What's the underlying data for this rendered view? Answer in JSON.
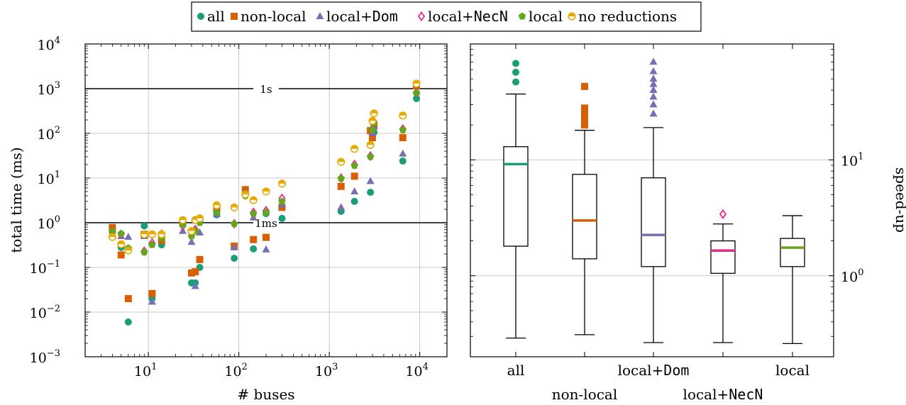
{
  "legend": {
    "entries": [
      {
        "label_pre": "all",
        "label_mono": "",
        "color": "#1b9e77",
        "marker": "circle"
      },
      {
        "label_pre": "non-local",
        "label_mono": "",
        "color": "#d95f02",
        "marker": "square"
      },
      {
        "label_pre": "local+",
        "label_mono": "Dom",
        "color": "#7570b3",
        "marker": "triangle"
      },
      {
        "label_pre": "local+",
        "label_mono": "NecN",
        "color": "#e7298a",
        "marker": "diamond"
      },
      {
        "label_pre": "local",
        "label_mono": "",
        "color": "#66a61e",
        "marker": "pentagon"
      },
      {
        "label_pre": "no reductions",
        "label_mono": "",
        "color": "#e6ab02",
        "marker": "halfcircle"
      }
    ]
  },
  "chart_data": [
    {
      "type": "scatter",
      "xlabel": "# buses",
      "ylabel": "total time (ms)",
      "xscale": "log",
      "yscale": "log",
      "xlim": [
        2,
        20000
      ],
      "ylim": [
        0.001,
        10000
      ],
      "x_ticks": [
        {
          "base": "10",
          "exp": "1"
        },
        {
          "base": "10",
          "exp": "2"
        },
        {
          "base": "10",
          "exp": "3"
        },
        {
          "base": "10",
          "exp": "4"
        }
      ],
      "y_ticks": [
        {
          "base": "10",
          "exp": "−3"
        },
        {
          "base": "10",
          "exp": "−2"
        },
        {
          "base": "10",
          "exp": "−1"
        },
        {
          "base": "10",
          "exp": "0"
        },
        {
          "base": "10",
          "exp": "1"
        },
        {
          "base": "10",
          "exp": "2"
        },
        {
          "base": "10",
          "exp": "3"
        },
        {
          "base": "10",
          "exp": "4"
        }
      ],
      "grid": true,
      "reference_lines": [
        {
          "y": 1000,
          "label": "1s"
        },
        {
          "y": 1,
          "label": "1ms"
        }
      ],
      "series": [
        {
          "name": "all",
          "points": [
            [
              4,
              0.62
            ],
            [
              5,
              0.28
            ],
            [
              6,
              0.006
            ],
            [
              9,
              0.85
            ],
            [
              11,
              0.02
            ],
            [
              14,
              0.32
            ],
            [
              24,
              0.9
            ],
            [
              30,
              0.045
            ],
            [
              33,
              0.045
            ],
            [
              37,
              0.1
            ],
            [
              57,
              1.5
            ],
            [
              89,
              0.16
            ],
            [
              118,
              4.5
            ],
            [
              145,
              0.26
            ],
            [
              200,
              1.6
            ],
            [
              300,
              1.25
            ],
            [
              1350,
              1.8
            ],
            [
              1900,
              3
            ],
            [
              2850,
              4.8
            ],
            [
              3000,
              90
            ],
            [
              3120,
              105
            ],
            [
              6500,
              24
            ],
            [
              9200,
              600
            ]
          ]
        },
        {
          "name": "non-local",
          "points": [
            [
              4,
              0.78
            ],
            [
              5,
              0.19
            ],
            [
              6,
              0.02
            ],
            [
              9,
              0.55
            ],
            [
              11,
              0.026
            ],
            [
              14,
              0.4
            ],
            [
              24,
              1.0
            ],
            [
              30,
              0.075
            ],
            [
              33,
              0.08
            ],
            [
              37,
              0.15
            ],
            [
              57,
              2.0
            ],
            [
              89,
              0.3
            ],
            [
              118,
              5.5
            ],
            [
              145,
              0.42
            ],
            [
              200,
              0.47
            ],
            [
              300,
              2.2
            ],
            [
              1350,
              6.5
            ],
            [
              1900,
              11
            ],
            [
              2850,
              115
            ],
            [
              3000,
              80
            ],
            [
              3120,
              150
            ],
            [
              6500,
              80
            ],
            [
              9200,
              1150
            ]
          ]
        },
        {
          "name": "local+Dom",
          "points": [
            [
              4,
              0.55
            ],
            [
              5,
              0.5
            ],
            [
              6,
              0.48
            ],
            [
              9,
              0.5
            ],
            [
              11,
              0.017
            ],
            [
              14,
              0.58
            ],
            [
              24,
              0.65
            ],
            [
              30,
              0.37
            ],
            [
              33,
              0.038
            ],
            [
              37,
              0.6
            ],
            [
              57,
              1.55
            ],
            [
              89,
              0.28
            ],
            [
              118,
              4.8
            ],
            [
              145,
              1.3
            ],
            [
              200,
              0.25
            ],
            [
              300,
              2.5
            ],
            [
              1350,
              2.2
            ],
            [
              1900,
              5
            ],
            [
              2850,
              8.5
            ],
            [
              3000,
              100
            ],
            [
              3120,
              140
            ],
            [
              6500,
              35
            ],
            [
              9200,
              880
            ]
          ]
        },
        {
          "name": "local+NecN",
          "points": [
            [
              4,
              0.6
            ],
            [
              5,
              0.55
            ],
            [
              6,
              0.26
            ],
            [
              9,
              0.23
            ],
            [
              11,
              0.35
            ],
            [
              14,
              0.5
            ],
            [
              24,
              0.85
            ],
            [
              30,
              0.6
            ],
            [
              33,
              0.7
            ],
            [
              37,
              1.1
            ],
            [
              57,
              1.8
            ],
            [
              89,
              0.95
            ],
            [
              118,
              4.2
            ],
            [
              145,
              1.7
            ],
            [
              200,
              1.85
            ],
            [
              300,
              3.5
            ],
            [
              1350,
              10
            ],
            [
              1900,
              20
            ],
            [
              2850,
              31
            ],
            [
              3000,
              125
            ],
            [
              3120,
              180
            ],
            [
              6500,
              125
            ],
            [
              9200,
              820
            ]
          ]
        },
        {
          "name": "local",
          "points": [
            [
              4,
              0.65
            ],
            [
              5,
              0.57
            ],
            [
              6,
              0.27
            ],
            [
              9,
              0.22
            ],
            [
              11,
              0.32
            ],
            [
              14,
              0.45
            ],
            [
              24,
              0.9
            ],
            [
              30,
              0.5
            ],
            [
              33,
              0.65
            ],
            [
              37,
              1.0
            ],
            [
              57,
              1.7
            ],
            [
              89,
              0.95
            ],
            [
              118,
              4.0
            ],
            [
              145,
              1.6
            ],
            [
              200,
              1.7
            ],
            [
              300,
              3.0
            ],
            [
              1350,
              9.8
            ],
            [
              1900,
              19
            ],
            [
              2850,
              30
            ],
            [
              3000,
              120
            ],
            [
              3120,
              170
            ],
            [
              6500,
              120
            ],
            [
              9200,
              800
            ]
          ]
        },
        {
          "name": "no reductions",
          "points": [
            [
              4,
              0.48
            ],
            [
              5,
              0.33
            ],
            [
              6,
              0.24
            ],
            [
              9,
              0.55
            ],
            [
              11,
              0.55
            ],
            [
              14,
              0.55
            ],
            [
              24,
              1.15
            ],
            [
              30,
              0.65
            ],
            [
              33,
              1.15
            ],
            [
              37,
              1.25
            ],
            [
              57,
              2.45
            ],
            [
              89,
              2.2
            ],
            [
              118,
              4.3
            ],
            [
              145,
              3.2
            ],
            [
              200,
              5.0
            ],
            [
              300,
              7.5
            ],
            [
              1350,
              23
            ],
            [
              1900,
              45
            ],
            [
              2850,
              55
            ],
            [
              3000,
              190
            ],
            [
              3120,
              280
            ],
            [
              6500,
              250
            ],
            [
              9200,
              1300
            ]
          ]
        }
      ]
    },
    {
      "type": "box",
      "ylabel": "speed-up",
      "yscale": "log",
      "ylim": [
        0.2,
        100
      ],
      "y_ticks": [
        {
          "base": "10",
          "exp": "0"
        },
        {
          "base": "10",
          "exp": "1"
        }
      ],
      "grid": true,
      "categories": [
        {
          "pre": "all",
          "mono": ""
        },
        {
          "pre": "non-local",
          "mono": ""
        },
        {
          "pre": "local+",
          "mono": "Dom"
        },
        {
          "pre": "local+",
          "mono": "NecN"
        },
        {
          "pre": "local",
          "mono": ""
        }
      ],
      "boxes": [
        {
          "name": "all",
          "whisker_low": 0.29,
          "q1": 1.8,
          "median": 9.2,
          "q3": 13,
          "whisker_high": 37,
          "outliers": [
            47,
            57,
            68
          ]
        },
        {
          "name": "non-local",
          "whisker_low": 0.31,
          "q1": 1.4,
          "median": 3.0,
          "q3": 7.5,
          "whisker_high": 18,
          "outliers": [
            20,
            22,
            24,
            26,
            28,
            43
          ]
        },
        {
          "name": "local+Dom",
          "whisker_low": 0.265,
          "q1": 1.2,
          "median": 2.25,
          "q3": 7.0,
          "whisker_high": 19,
          "outliers": [
            25,
            30,
            35,
            40,
            45,
            50,
            58,
            70
          ]
        },
        {
          "name": "local+NecN",
          "whisker_low": 0.265,
          "q1": 1.05,
          "median": 1.65,
          "q3": 2.0,
          "whisker_high": 2.8,
          "outliers": [
            3.4
          ]
        },
        {
          "name": "local",
          "whisker_low": 0.26,
          "q1": 1.2,
          "median": 1.75,
          "q3": 2.1,
          "whisker_high": 3.3,
          "outliers": []
        }
      ]
    }
  ]
}
